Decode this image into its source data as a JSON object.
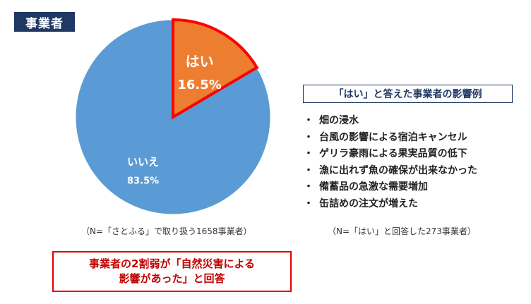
{
  "header": {
    "tag": "事業者"
  },
  "chart_data": {
    "type": "pie",
    "slices": [
      {
        "label": "はい",
        "value": 16.5,
        "value_label": "16.5%",
        "color": "#ed7d31",
        "highlight": "#ff0000"
      },
      {
        "label": "いいえ",
        "value": 83.5,
        "value_label": "83.5%",
        "color": "#5b9bd5"
      }
    ],
    "start_angle": "12 o'clock",
    "direction": "clockwise"
  },
  "notes": {
    "left": "（N=「さとふる」で取り扱う1658事業者）",
    "right": "（N=「はい」と回答した273事業者）"
  },
  "examples": {
    "title": "「はい」と答えた事業者の影響例",
    "bullet": "・",
    "items": [
      "畑の浸水",
      "台風の影響による宿泊キャンセル",
      "ゲリラ豪雨による果実品質の低下",
      "漁に出れず魚の確保が出来なかった",
      "備蓄品の急激な需要増加",
      "缶詰めの注文が増えた"
    ]
  },
  "callout": {
    "line1": "事業者の2割弱が「自然災害による",
    "line2": "影響があった」と回答"
  }
}
